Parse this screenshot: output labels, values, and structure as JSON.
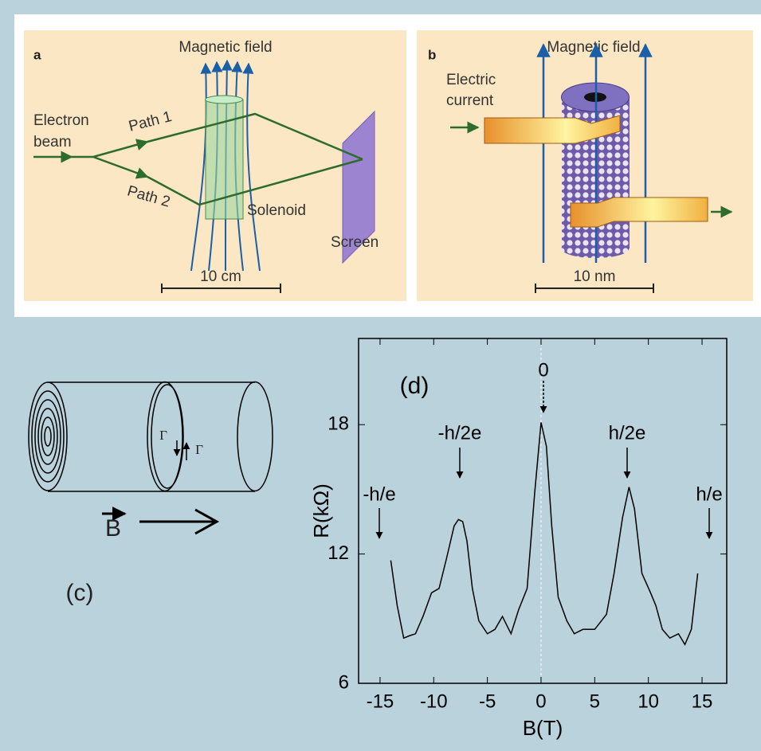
{
  "panel_a": {
    "label": "a",
    "field": "Magnetic field",
    "beam": [
      "Electron",
      "beam"
    ],
    "path1": "Path 1",
    "path2": "Path 2",
    "solenoid": "Solenoid",
    "screen": "Screen",
    "scale": "10 cm"
  },
  "panel_b": {
    "label": "b",
    "field": "Magnetic field",
    "current": [
      "Electric",
      "current"
    ],
    "scale": "10 nm"
  },
  "panel_c": {
    "label": "(c)",
    "gamma": [
      "Γ",
      "Γ"
    ],
    "field": "B"
  },
  "chart_data": {
    "type": "line",
    "xlabel": "B(T)",
    "ylabel": "R(kΩ)",
    "x": [
      -14,
      -13.4,
      -12.8,
      -12.3,
      -11.7,
      -11,
      -10.2,
      -9.5,
      -8.8,
      -8.1,
      -7.7,
      -7.3,
      -6.9,
      -6.4,
      -5.8,
      -5,
      -4.3,
      -3.6,
      -2.8,
      -2.1,
      -1.3,
      -0.6,
      0,
      0.5,
      1,
      1.6,
      2.4,
      3.1,
      3.9,
      5,
      6.1,
      6.8,
      7.6,
      8.2,
      8.7,
      9.4,
      10.2,
      10.7,
      11.3,
      12,
      12.8,
      13.4,
      14,
      14.6
    ],
    "values": [
      11.7,
      9.6,
      8.1,
      8.2,
      8.3,
      9.1,
      10.2,
      10.4,
      11.8,
      13.3,
      13.6,
      13.5,
      12.6,
      10.4,
      8.9,
      8.3,
      8.5,
      9.1,
      8.3,
      9.4,
      10.4,
      14.8,
      18.1,
      17,
      13.3,
      10,
      8.9,
      8.3,
      8.5,
      8.5,
      9.2,
      11.1,
      13.7,
      15.1,
      14.1,
      11.1,
      10.2,
      9.6,
      8.5,
      8.1,
      8.3,
      7.8,
      8.5,
      11.1
    ],
    "color": "#000000",
    "xlim": [
      -17,
      17.3
    ],
    "ylim": [
      6,
      22
    ],
    "xticks": [
      -15,
      -10,
      -5,
      0,
      5,
      10,
      15
    ],
    "yticks": [
      6,
      12,
      18
    ],
    "annotations": [
      "(d)",
      "0",
      "-h/2e",
      "h/2e",
      "-h/e",
      "h/e"
    ]
  }
}
